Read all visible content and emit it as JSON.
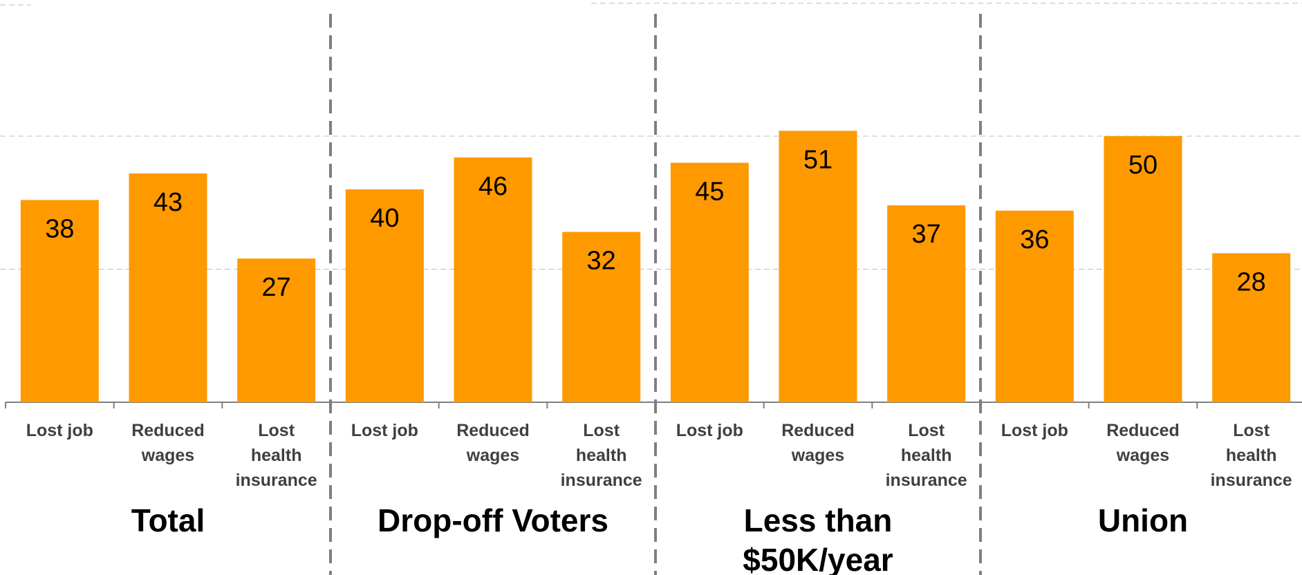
{
  "chart_data": {
    "type": "bar",
    "groups": [
      {
        "name": [
          "Total"
        ],
        "categories": [
          [
            "Lost job"
          ],
          [
            "Reduced",
            "wages"
          ],
          [
            "Lost",
            "health",
            "insurance"
          ]
        ],
        "values": [
          38,
          43,
          27
        ]
      },
      {
        "name": [
          "Drop-off Voters"
        ],
        "categories": [
          [
            "Lost job"
          ],
          [
            "Reduced",
            "wages"
          ],
          [
            "Lost",
            "health",
            "insurance"
          ]
        ],
        "values": [
          40,
          46,
          32
        ]
      },
      {
        "name": [
          "Less than",
          "$50K/year"
        ],
        "categories": [
          [
            "Lost job"
          ],
          [
            "Reduced",
            "wages"
          ],
          [
            "Lost",
            "health",
            "insurance"
          ]
        ],
        "values": [
          45,
          51,
          37
        ]
      },
      {
        "name": [
          "Union"
        ],
        "categories": [
          [
            "Lost job"
          ],
          [
            "Reduced",
            "wages"
          ],
          [
            "Lost",
            "health",
            "insurance"
          ]
        ],
        "values": [
          36,
          50,
          28
        ]
      }
    ],
    "ylim": [
      0,
      75
    ],
    "gridlines": [
      25,
      50,
      75
    ],
    "grid": true,
    "legend": "none",
    "colors": {
      "bar": "#FF9900",
      "grid": "#BFBFBF",
      "separator": "#7F7F7F",
      "axis": "#7F7F7F"
    }
  }
}
